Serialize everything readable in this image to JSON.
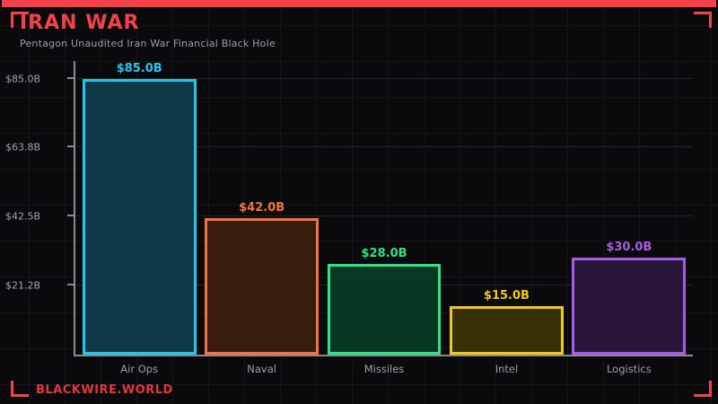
{
  "header": {
    "title": "IRAN WAR",
    "subtitle": "Pentagon Unaudited Iran War Financial Black Hole"
  },
  "footer": {
    "brand": "BLACKWIRE.WORLD"
  },
  "colors": {
    "accent_red": "#f4424a",
    "background": "#0a0a0d",
    "axis": "#8a8a90",
    "muted_text": "#9aa0a8"
  },
  "chart_data": {
    "type": "bar",
    "title": "Pentagon Unaudited Iran War Financial Black Hole",
    "categories": [
      "Air Ops",
      "Naval",
      "Missiles",
      "Intel",
      "Logistics"
    ],
    "values": [
      85.0,
      42.0,
      28.0,
      15.0,
      30.0
    ],
    "value_labels": [
      "$85.0B",
      "$42.0B",
      "$28.0B",
      "$15.0B",
      "$30.0B"
    ],
    "bar_border_colors": [
      "#29c5e8",
      "#f4733a",
      "#2be487",
      "#f2c51f",
      "#a55ce8"
    ],
    "bar_fill_colors": [
      "#0d3a46",
      "#3a1c0d",
      "#093822",
      "#393006",
      "#291539"
    ],
    "y_ticks": [
      {
        "label": "$85.0B",
        "value": 85.0
      },
      {
        "label": "$63.8B",
        "value": 63.8
      },
      {
        "label": "$42.5B",
        "value": 42.5
      },
      {
        "label": "$21.2B",
        "value": 21.2
      }
    ],
    "ylim": [
      0,
      90.5
    ],
    "xlabel": "",
    "ylabel": "",
    "grid": true,
    "legend": false
  }
}
